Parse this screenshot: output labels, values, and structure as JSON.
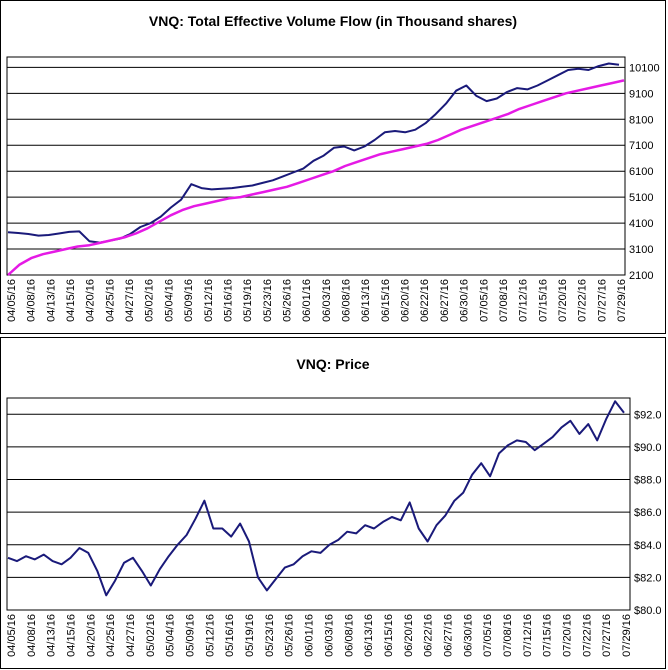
{
  "chart_data": [
    {
      "type": "line",
      "title": "VNQ: Total Effective Volume Flow (in Thousand shares)",
      "ylim": [
        2100,
        10500
      ],
      "y_ticks": [
        "2100",
        "3100",
        "4100",
        "5100",
        "6100",
        "7100",
        "8100",
        "9100",
        "10100"
      ],
      "x_tick_labels": [
        "04/05/16",
        "04/08/16",
        "04/13/16",
        "04/15/16",
        "04/20/16",
        "04/25/16",
        "04/27/16",
        "05/02/16",
        "05/04/16",
        "05/09/16",
        "05/12/16",
        "05/16/16",
        "05/19/16",
        "05/23/16",
        "05/26/16",
        "06/01/16",
        "06/03/16",
        "06/08/16",
        "06/13/16",
        "06/15/16",
        "06/20/16",
        "06/22/16",
        "06/27/16",
        "06/30/16",
        "07/05/16",
        "07/08/16",
        "07/12/16",
        "07/15/16",
        "07/20/16",
        "07/22/16",
        "07/27/16",
        "07/29/16"
      ],
      "grid": "horizontal",
      "series": [
        {
          "color": "#1a1a7a",
          "values": [
            3750,
            3720,
            3680,
            3620,
            3640,
            3700,
            3760,
            3780,
            3400,
            3350,
            3420,
            3500,
            3680,
            3950,
            4100,
            4350,
            4700,
            5000,
            5600,
            5450,
            5400,
            5420,
            5450,
            5500,
            5550,
            5650,
            5750,
            5900,
            6050,
            6200,
            6500,
            6700,
            7000,
            7050,
            6900,
            7050,
            7300,
            7600,
            7650,
            7600,
            7700,
            7950,
            8300,
            8700,
            9200,
            9400,
            9000,
            8800,
            8900,
            9150,
            9300,
            9250,
            9400,
            9600,
            9800,
            10000,
            10050,
            10000,
            10150,
            10250,
            10200
          ]
        },
        {
          "color": "#e51ae5",
          "values": [
            2100,
            2500,
            2750,
            2900,
            3000,
            3100,
            3200,
            3250,
            3350,
            3450,
            3550,
            3700,
            3900,
            4150,
            4400,
            4600,
            4750,
            4850,
            4950,
            5050,
            5100,
            5200,
            5300,
            5400,
            5500,
            5650,
            5800,
            5950,
            6100,
            6300,
            6450,
            6600,
            6750,
            6850,
            6950,
            7050,
            7150,
            7300,
            7500,
            7700,
            7850,
            8000,
            8150,
            8300,
            8500,
            8650,
            8800,
            8950,
            9100,
            9200,
            9300,
            9400,
            9500,
            9600
          ]
        }
      ]
    },
    {
      "type": "line",
      "title": "VNQ: Price",
      "ylim": [
        80.0,
        93.0
      ],
      "y_ticks": [
        "$80.0",
        "$82.0",
        "$84.0",
        "$86.0",
        "$88.0",
        "$90.0",
        "$92.0"
      ],
      "x_tick_labels": [
        "04/05/16",
        "04/08/16",
        "04/13/16",
        "04/15/16",
        "04/20/16",
        "04/25/16",
        "04/27/16",
        "05/02/16",
        "05/04/16",
        "05/09/16",
        "05/12/16",
        "05/16/16",
        "05/19/16",
        "05/23/16",
        "05/26/16",
        "06/01/16",
        "06/03/16",
        "06/08/16",
        "06/13/16",
        "06/15/16",
        "06/20/16",
        "06/22/16",
        "06/27/16",
        "06/30/16",
        "07/05/16",
        "07/08/16",
        "07/12/16",
        "07/15/16",
        "07/20/16",
        "07/22/16",
        "07/27/16",
        "07/29/16"
      ],
      "grid": "horizontal",
      "series": [
        {
          "color": "#1a1a7a",
          "values": [
            83.2,
            83.0,
            83.3,
            83.1,
            83.4,
            83.0,
            82.8,
            83.2,
            83.8,
            83.5,
            82.4,
            80.9,
            81.8,
            82.9,
            83.2,
            82.4,
            81.5,
            82.5,
            83.3,
            84.0,
            84.6,
            85.6,
            86.7,
            85.0,
            85.0,
            84.5,
            85.3,
            84.2,
            82.0,
            81.2,
            81.9,
            82.6,
            82.8,
            83.3,
            83.6,
            83.5,
            84.0,
            84.3,
            84.8,
            84.7,
            85.2,
            85.0,
            85.4,
            85.7,
            85.5,
            86.6,
            85.0,
            84.2,
            85.2,
            85.8,
            86.7,
            87.2,
            88.3,
            89.0,
            88.2,
            89.6,
            90.1,
            90.4,
            90.3,
            89.8,
            90.2,
            90.6,
            91.2,
            91.6,
            90.8,
            91.4,
            90.4,
            91.7,
            92.8,
            92.1
          ]
        }
      ]
    }
  ]
}
